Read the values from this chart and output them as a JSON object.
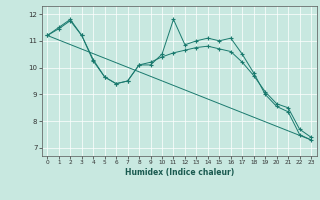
{
  "xlabel": "Humidex (Indice chaleur)",
  "xlim": [
    -0.5,
    23.5
  ],
  "ylim": [
    6.7,
    12.3
  ],
  "yticks": [
    7,
    8,
    9,
    10,
    11,
    12
  ],
  "xticks": [
    0,
    1,
    2,
    3,
    4,
    5,
    6,
    7,
    8,
    9,
    10,
    11,
    12,
    13,
    14,
    15,
    16,
    17,
    18,
    19,
    20,
    21,
    22,
    23
  ],
  "bg_color": "#c8e8e0",
  "line_color": "#1a7a6e",
  "grid_color": "#ffffff",
  "line1_x": [
    0,
    1,
    2,
    3,
    4,
    5,
    6,
    7,
    8,
    9,
    10,
    11,
    12,
    13,
    14,
    15,
    16,
    17,
    18,
    19,
    20,
    21,
    22,
    23
  ],
  "line1_y": [
    11.2,
    11.5,
    11.8,
    11.2,
    10.25,
    9.65,
    9.4,
    9.5,
    10.1,
    10.1,
    10.5,
    11.8,
    10.85,
    11.0,
    11.1,
    11.0,
    11.1,
    10.5,
    9.8,
    9.0,
    8.55,
    8.35,
    7.5,
    7.3
  ],
  "line2_x": [
    0,
    1,
    2,
    3,
    4,
    5,
    6,
    7,
    8,
    9,
    10,
    11,
    12,
    13,
    14,
    15,
    16,
    17,
    18,
    19,
    20,
    21,
    22,
    23
  ],
  "line2_y": [
    11.2,
    11.45,
    11.75,
    11.2,
    10.3,
    9.65,
    9.4,
    9.5,
    10.1,
    10.2,
    10.4,
    10.55,
    10.65,
    10.75,
    10.8,
    10.7,
    10.6,
    10.2,
    9.7,
    9.1,
    8.65,
    8.5,
    7.7,
    7.4
  ],
  "line3_x": [
    0,
    23
  ],
  "line3_y": [
    11.2,
    7.3
  ]
}
